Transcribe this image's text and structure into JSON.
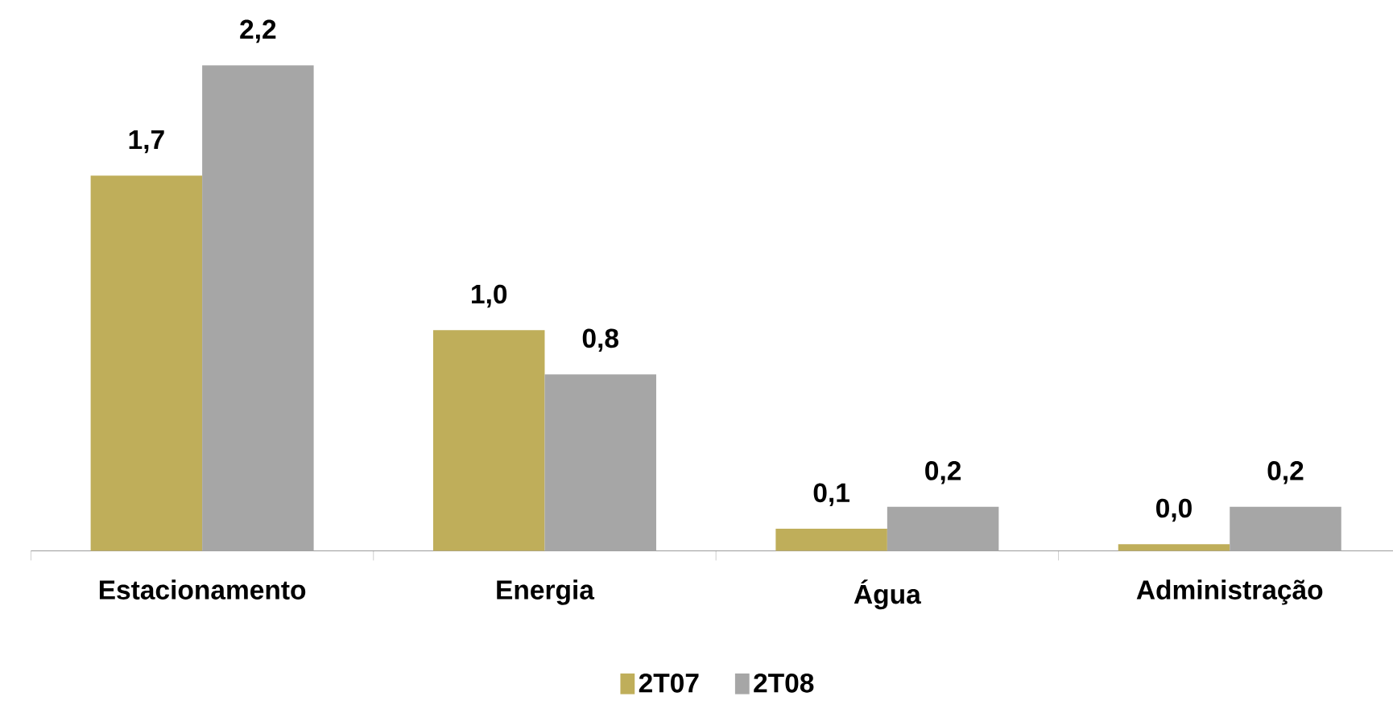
{
  "chart_data": {
    "type": "bar",
    "categories": [
      "Estacionamento",
      "Energia",
      "Água",
      "Administração"
    ],
    "series": [
      {
        "name": "2T07",
        "color": "#bfae5a",
        "values": [
          1.7,
          1.0,
          0.1,
          0.03
        ],
        "value_labels": [
          "1,7",
          "1,0",
          "0,1",
          "0,0"
        ]
      },
      {
        "name": "2T08",
        "color": "#a6a6a6",
        "values": [
          2.2,
          0.8,
          0.2,
          0.2
        ],
        "value_labels": [
          "2,2",
          "0,8",
          "0,2",
          "0,2"
        ]
      }
    ],
    "legend": "bottom"
  }
}
